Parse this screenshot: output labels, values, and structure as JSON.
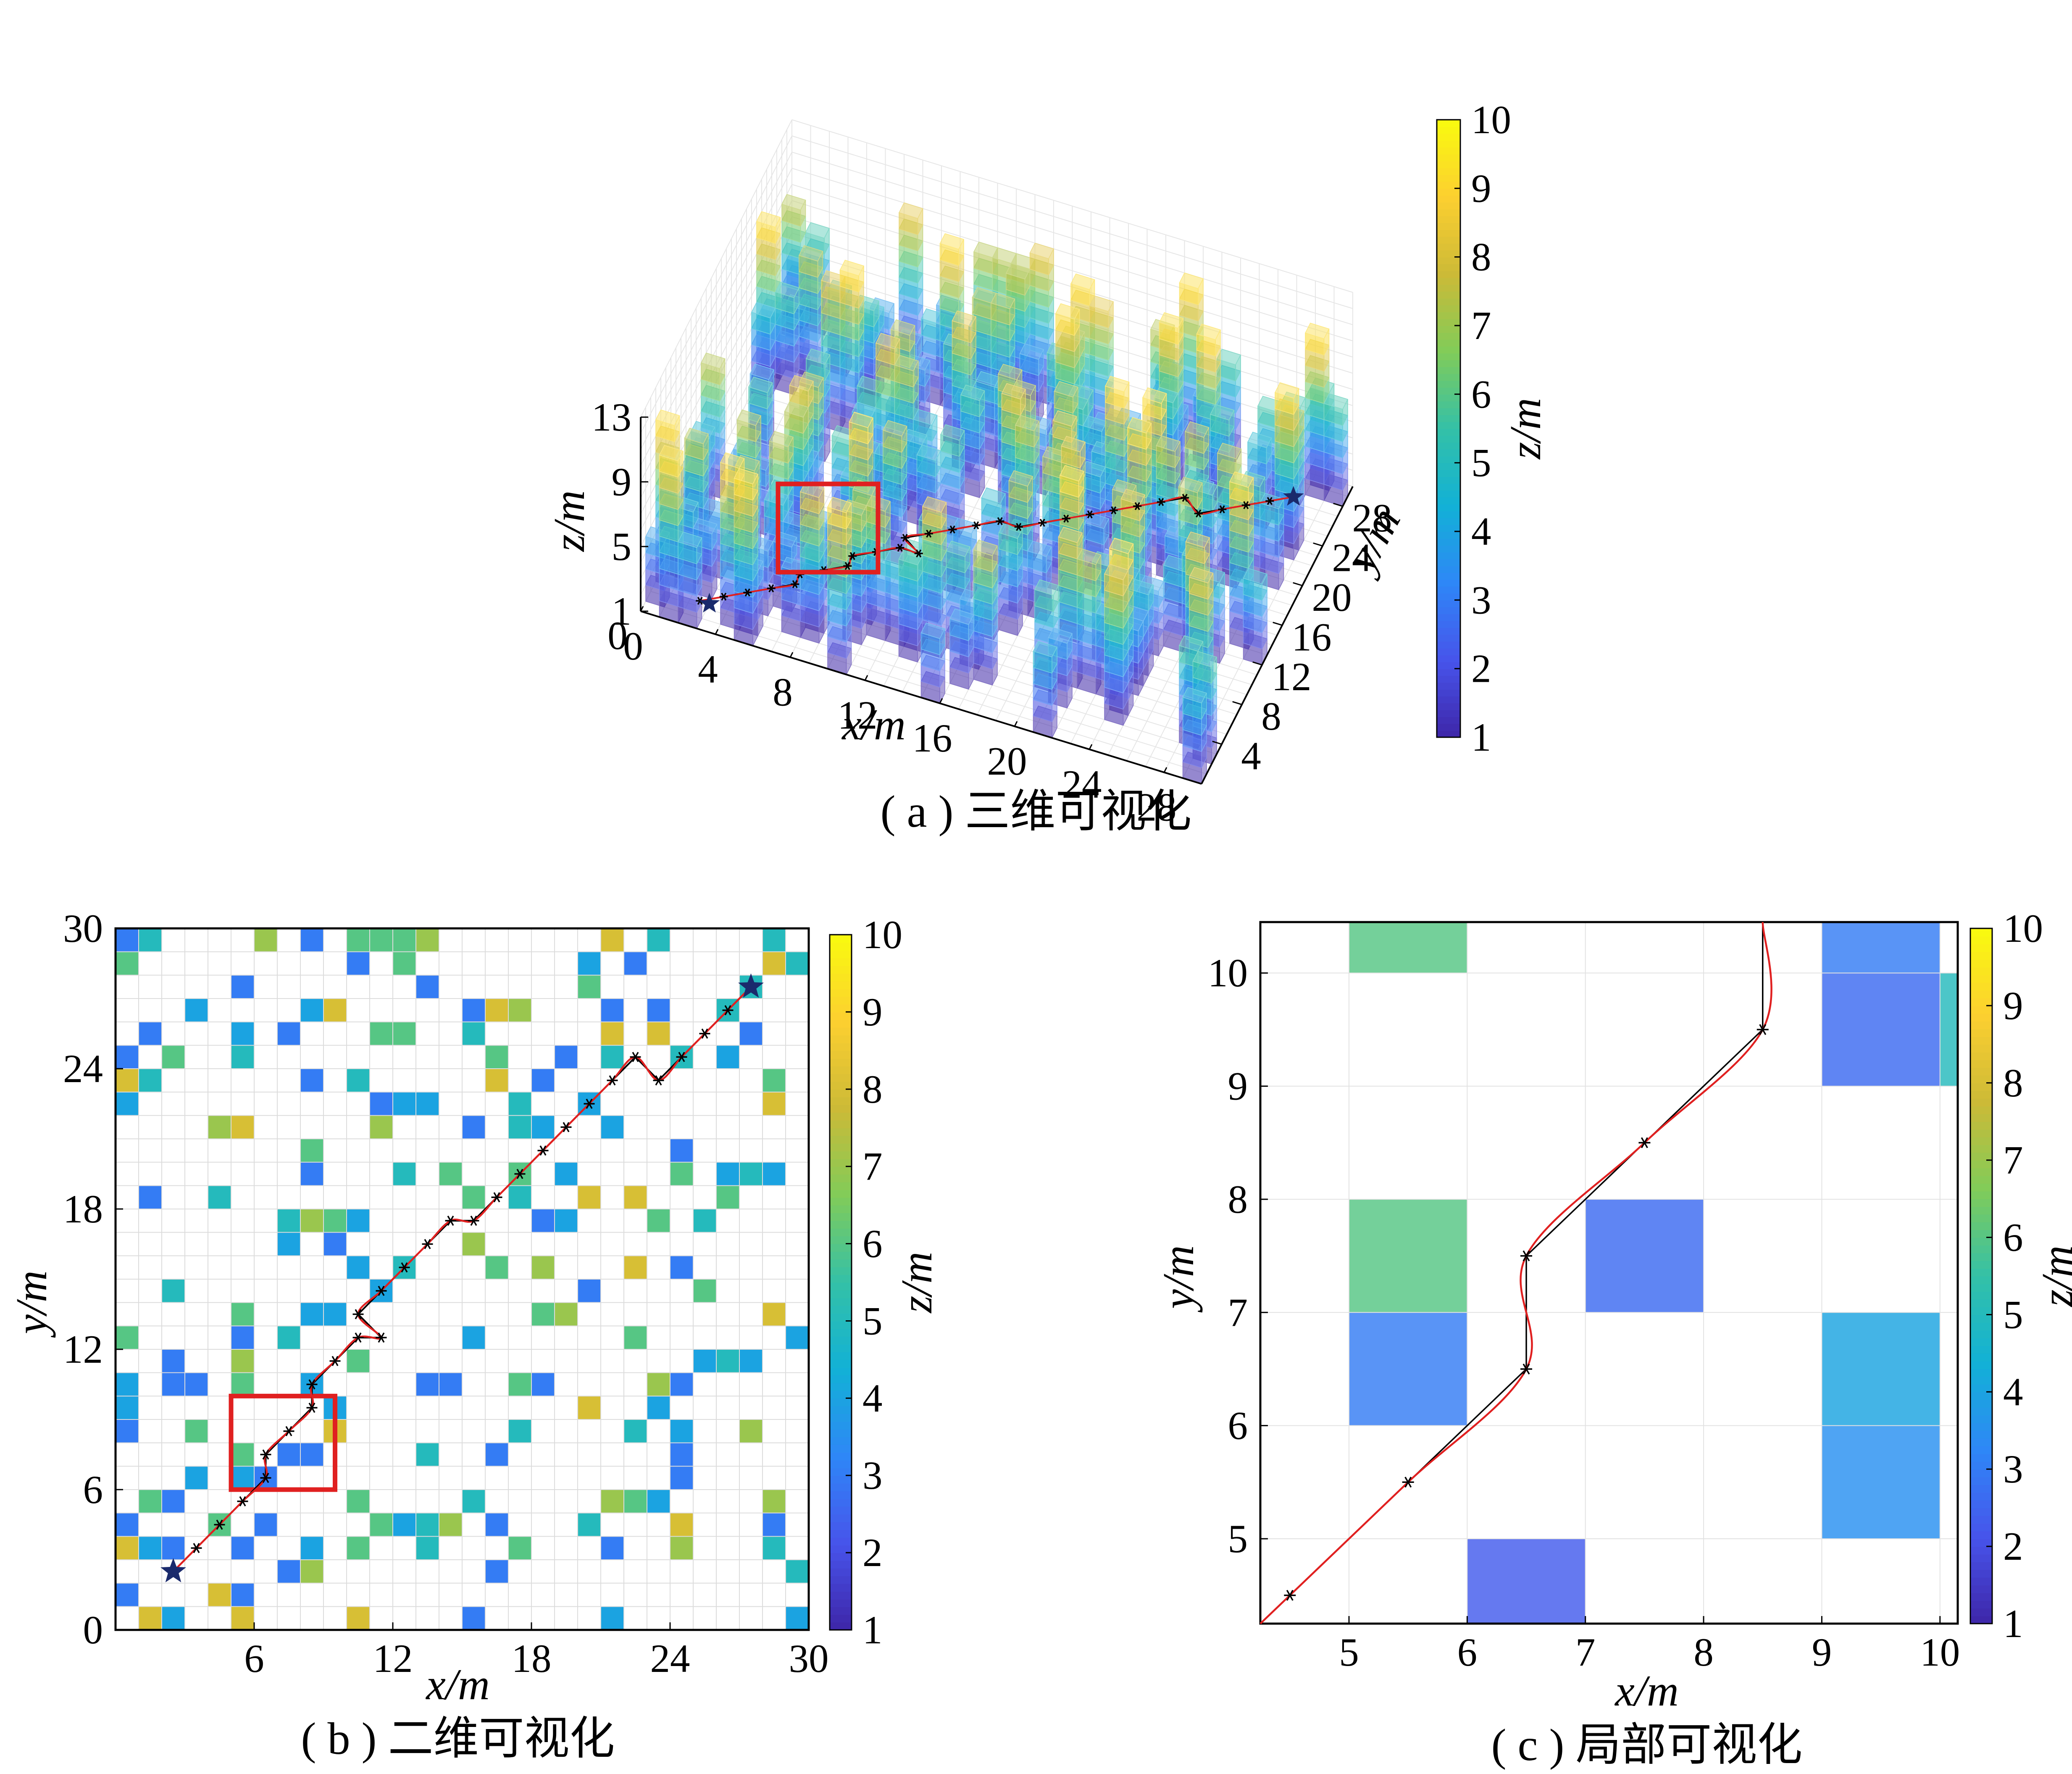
{
  "chart_data": [
    {
      "panel": "a",
      "type": "3d-voxel",
      "caption": "( a ) 三维可视化",
      "xlabel": "x/m",
      "ylabel": "y/m",
      "zlabel": "z/m",
      "xticks": [
        "0",
        "4",
        "8",
        "12",
        "16",
        "20",
        "24",
        "28"
      ],
      "yticks": [
        "4",
        "8",
        "12",
        "16",
        "20",
        "24",
        "28"
      ],
      "zticks": [
        "1",
        "5",
        "9",
        "13"
      ],
      "xlim": [
        0,
        30
      ],
      "ylim": [
        0,
        30
      ],
      "zlim": [
        1,
        13
      ],
      "colorbar": {
        "label": "z/m",
        "ticks": [
          "1",
          "2",
          "3",
          "4",
          "5",
          "6",
          "7",
          "8",
          "9",
          "10"
        ],
        "range": [
          1,
          10
        ]
      },
      "path": {
        "start": [
          3,
          2.5
        ],
        "end": [
          27.5,
          27.5
        ],
        "start_marker": "star",
        "end_marker": "star"
      },
      "highlight_box": "red"
    },
    {
      "panel": "b",
      "type": "heatmap",
      "caption": "( b ) 二维可视化",
      "xlabel": "x/m",
      "ylabel": "y/m",
      "xticks": [
        "6",
        "12",
        "18",
        "24",
        "30"
      ],
      "yticks": [
        "0",
        "6",
        "12",
        "18",
        "24",
        "30"
      ],
      "xlim": [
        0,
        30
      ],
      "ylim": [
        0,
        30
      ],
      "colorbar": {
        "label": "z/m",
        "ticks": [
          "1",
          "2",
          "3",
          "4",
          "5",
          "6",
          "7",
          "8",
          "9",
          "10"
        ],
        "range": [
          1,
          10
        ]
      },
      "highlight_box": {
        "x": [
          5,
          9.5
        ],
        "y": [
          6,
          10
        ]
      },
      "path_points": [
        [
          2.5,
          2.5
        ],
        [
          3.5,
          3.5
        ],
        [
          4.5,
          4.5
        ],
        [
          5.5,
          5.5
        ],
        [
          6.5,
          6.5
        ],
        [
          6.5,
          7.5
        ],
        [
          7.5,
          8.5
        ],
        [
          8.5,
          9.5
        ],
        [
          8.5,
          10.5
        ],
        [
          9.5,
          11.5
        ],
        [
          10.5,
          12.5
        ],
        [
          11.5,
          12.5
        ],
        [
          10.5,
          13.5
        ],
        [
          11.5,
          14.5
        ],
        [
          12.5,
          15.5
        ],
        [
          13.5,
          16.5
        ],
        [
          14.5,
          17.5
        ],
        [
          15.5,
          17.5
        ],
        [
          16.5,
          18.5
        ],
        [
          17.5,
          19.5
        ],
        [
          18.5,
          20.5
        ],
        [
          19.5,
          21.5
        ],
        [
          20.5,
          22.5
        ],
        [
          21.5,
          23.5
        ],
        [
          22.5,
          24.5
        ],
        [
          23.5,
          23.5
        ],
        [
          24.5,
          24.5
        ],
        [
          25.5,
          25.5
        ],
        [
          26.5,
          26.5
        ],
        [
          27.5,
          27.5
        ]
      ],
      "start": [
        2.5,
        2.5
      ],
      "end": [
        27.5,
        27.5
      ],
      "cells": [
        [
          0,
          29,
          3
        ],
        [
          1,
          29,
          5
        ],
        [
          6,
          29,
          7
        ],
        [
          8,
          29,
          3
        ],
        [
          10,
          29,
          6
        ],
        [
          11,
          29,
          6
        ],
        [
          12,
          29,
          6
        ],
        [
          13,
          29,
          7
        ],
        [
          21,
          29,
          8
        ],
        [
          23,
          29,
          5
        ],
        [
          28,
          29,
          5
        ],
        [
          0,
          28,
          6
        ],
        [
          10,
          28,
          3
        ],
        [
          12,
          28,
          6
        ],
        [
          20,
          28,
          4
        ],
        [
          22,
          28,
          3
        ],
        [
          28,
          28,
          8
        ],
        [
          29,
          28,
          5
        ],
        [
          5,
          27,
          3
        ],
        [
          13,
          27,
          3
        ],
        [
          20,
          27,
          6
        ],
        [
          27,
          27,
          5
        ],
        [
          3,
          26,
          4
        ],
        [
          8,
          26,
          4
        ],
        [
          9,
          26,
          8
        ],
        [
          15,
          26,
          3
        ],
        [
          16,
          26,
          8
        ],
        [
          17,
          26,
          7
        ],
        [
          21,
          26,
          3
        ],
        [
          23,
          26,
          3
        ],
        [
          26,
          26,
          5
        ],
        [
          1,
          25,
          3
        ],
        [
          5,
          25,
          4
        ],
        [
          7,
          25,
          3
        ],
        [
          11,
          25,
          6
        ],
        [
          12,
          25,
          6
        ],
        [
          15,
          25,
          5
        ],
        [
          21,
          25,
          8
        ],
        [
          23,
          25,
          8
        ],
        [
          27,
          25,
          3
        ],
        [
          0,
          24,
          3
        ],
        [
          2,
          24,
          6
        ],
        [
          5,
          24,
          5
        ],
        [
          16,
          24,
          6
        ],
        [
          19,
          24,
          3
        ],
        [
          21,
          24,
          5
        ],
        [
          24,
          24,
          5
        ],
        [
          26,
          24,
          4
        ],
        [
          0,
          23,
          8
        ],
        [
          1,
          23,
          5
        ],
        [
          8,
          23,
          3
        ],
        [
          10,
          23,
          5
        ],
        [
          16,
          23,
          8
        ],
        [
          18,
          23,
          3
        ],
        [
          28,
          23,
          6
        ],
        [
          0,
          22,
          4
        ],
        [
          11,
          22,
          3
        ],
        [
          12,
          22,
          4
        ],
        [
          13,
          22,
          4
        ],
        [
          17,
          22,
          5
        ],
        [
          20,
          22,
          4
        ],
        [
          28,
          22,
          8
        ],
        [
          4,
          21,
          7
        ],
        [
          5,
          21,
          8
        ],
        [
          11,
          21,
          7
        ],
        [
          15,
          21,
          3
        ],
        [
          17,
          21,
          5
        ],
        [
          18,
          21,
          4
        ],
        [
          21,
          21,
          4
        ],
        [
          8,
          20,
          6
        ],
        [
          24,
          20,
          3
        ],
        [
          8,
          19,
          3
        ],
        [
          12,
          19,
          5
        ],
        [
          14,
          19,
          6
        ],
        [
          17,
          19,
          6
        ],
        [
          19,
          19,
          4
        ],
        [
          24,
          19,
          6
        ],
        [
          26,
          19,
          4
        ],
        [
          27,
          19,
          5
        ],
        [
          28,
          19,
          4
        ],
        [
          1,
          18,
          3
        ],
        [
          4,
          18,
          5
        ],
        [
          15,
          18,
          6
        ],
        [
          17,
          18,
          5
        ],
        [
          20,
          18,
          8
        ],
        [
          22,
          18,
          8
        ],
        [
          26,
          18,
          6
        ],
        [
          7,
          17,
          5
        ],
        [
          8,
          17,
          7
        ],
        [
          9,
          17,
          6
        ],
        [
          10,
          17,
          4
        ],
        [
          18,
          17,
          3
        ],
        [
          19,
          17,
          4
        ],
        [
          23,
          17,
          6
        ],
        [
          25,
          17,
          5
        ],
        [
          7,
          16,
          4
        ],
        [
          9,
          16,
          3
        ],
        [
          15,
          16,
          7
        ],
        [
          10,
          15,
          4
        ],
        [
          12,
          15,
          5
        ],
        [
          16,
          15,
          6
        ],
        [
          18,
          15,
          7
        ],
        [
          22,
          15,
          8
        ],
        [
          24,
          15,
          3
        ],
        [
          2,
          14,
          5
        ],
        [
          11,
          14,
          4
        ],
        [
          20,
          14,
          3
        ],
        [
          25,
          14,
          6
        ],
        [
          5,
          13,
          6
        ],
        [
          8,
          13,
          4
        ],
        [
          9,
          13,
          4
        ],
        [
          18,
          13,
          6
        ],
        [
          19,
          13,
          7
        ],
        [
          28,
          13,
          8
        ],
        [
          0,
          12,
          6
        ],
        [
          5,
          12,
          3
        ],
        [
          7,
          12,
          5
        ],
        [
          15,
          12,
          4
        ],
        [
          22,
          12,
          6
        ],
        [
          29,
          12,
          4
        ],
        [
          2,
          11,
          3
        ],
        [
          5,
          11,
          7
        ],
        [
          10,
          11,
          6
        ],
        [
          25,
          11,
          4
        ],
        [
          26,
          11,
          5
        ],
        [
          27,
          11,
          4
        ],
        [
          0,
          10,
          4
        ],
        [
          2,
          10,
          3
        ],
        [
          3,
          10,
          3
        ],
        [
          5,
          10,
          6
        ],
        [
          8,
          10,
          4
        ],
        [
          13,
          10,
          3
        ],
        [
          14,
          10,
          3
        ],
        [
          17,
          10,
          6
        ],
        [
          18,
          10,
          3
        ],
        [
          23,
          10,
          7
        ],
        [
          24,
          10,
          3
        ],
        [
          0,
          9,
          4
        ],
        [
          9,
          9,
          4
        ],
        [
          20,
          9,
          8
        ],
        [
          23,
          9,
          4
        ],
        [
          0,
          8,
          3
        ],
        [
          3,
          8,
          6
        ],
        [
          9,
          8,
          8
        ],
        [
          17,
          8,
          5
        ],
        [
          22,
          8,
          5
        ],
        [
          24,
          8,
          4
        ],
        [
          27,
          8,
          7
        ],
        [
          5,
          7,
          6
        ],
        [
          7,
          7,
          3
        ],
        [
          8,
          7,
          3
        ],
        [
          13,
          7,
          5
        ],
        [
          16,
          7,
          3
        ],
        [
          24,
          7,
          3
        ],
        [
          3,
          6,
          4
        ],
        [
          5,
          6,
          4
        ],
        [
          6,
          6,
          3
        ],
        [
          24,
          6,
          3
        ],
        [
          1,
          5,
          6
        ],
        [
          2,
          5,
          3
        ],
        [
          10,
          5,
          6
        ],
        [
          15,
          5,
          5
        ],
        [
          21,
          5,
          7
        ],
        [
          22,
          5,
          6
        ],
        [
          23,
          5,
          4
        ],
        [
          28,
          5,
          7
        ],
        [
          0,
          4,
          3
        ],
        [
          4,
          4,
          6
        ],
        [
          6,
          4,
          3
        ],
        [
          11,
          4,
          6
        ],
        [
          12,
          4,
          4
        ],
        [
          13,
          4,
          5
        ],
        [
          14,
          4,
          7
        ],
        [
          16,
          4,
          3
        ],
        [
          20,
          4,
          5
        ],
        [
          24,
          4,
          8
        ],
        [
          28,
          4,
          3
        ],
        [
          0,
          3,
          8
        ],
        [
          1,
          3,
          4
        ],
        [
          2,
          3,
          3
        ],
        [
          5,
          3,
          3
        ],
        [
          8,
          3,
          4
        ],
        [
          10,
          3,
          6
        ],
        [
          13,
          3,
          5
        ],
        [
          17,
          3,
          6
        ],
        [
          21,
          3,
          3
        ],
        [
          24,
          3,
          7
        ],
        [
          28,
          3,
          5
        ],
        [
          7,
          2,
          3
        ],
        [
          8,
          2,
          7
        ],
        [
          16,
          2,
          3
        ],
        [
          29,
          2,
          5
        ],
        [
          0,
          1,
          3
        ],
        [
          4,
          1,
          8
        ],
        [
          5,
          1,
          3
        ],
        [
          1,
          0,
          8
        ],
        [
          2,
          0,
          4
        ],
        [
          5,
          0,
          8
        ],
        [
          10,
          0,
          8
        ],
        [
          15,
          0,
          3
        ],
        [
          21,
          0,
          4
        ],
        [
          29,
          0,
          4
        ]
      ]
    },
    {
      "panel": "c",
      "type": "heatmap",
      "caption": "( c ) 局部可视化",
      "xlabel": "x/m",
      "ylabel": "y/m",
      "xticks": [
        "5",
        "6",
        "7",
        "8",
        "9",
        "10"
      ],
      "yticks": [
        "5",
        "6",
        "7",
        "8",
        "9",
        "10"
      ],
      "xlim": [
        4.25,
        10.15
      ],
      "ylim": [
        4.25,
        10.45
      ],
      "colorbar": {
        "label": "z/m",
        "ticks": [
          "1",
          "2",
          "3",
          "4",
          "5",
          "6",
          "7",
          "8",
          "9",
          "10"
        ],
        "range": [
          1,
          10
        ]
      },
      "cells": [
        [
          5,
          10,
          6
        ],
        [
          9,
          10,
          3
        ],
        [
          9,
          9,
          2.6
        ],
        [
          10,
          9,
          5
        ],
        [
          5,
          7,
          6
        ],
        [
          7,
          7,
          2.6
        ],
        [
          5,
          6,
          3
        ],
        [
          9,
          6,
          4
        ],
        [
          9,
          5,
          3.5
        ],
        [
          6,
          4,
          2.3
        ]
      ],
      "path_points": [
        [
          4.5,
          4.5
        ],
        [
          5.5,
          5.5
        ],
        [
          6.5,
          6.5
        ],
        [
          6.5,
          7.5
        ],
        [
          7.5,
          8.5
        ],
        [
          8.5,
          9.5
        ],
        [
          8.5,
          10.45
        ]
      ]
    }
  ]
}
